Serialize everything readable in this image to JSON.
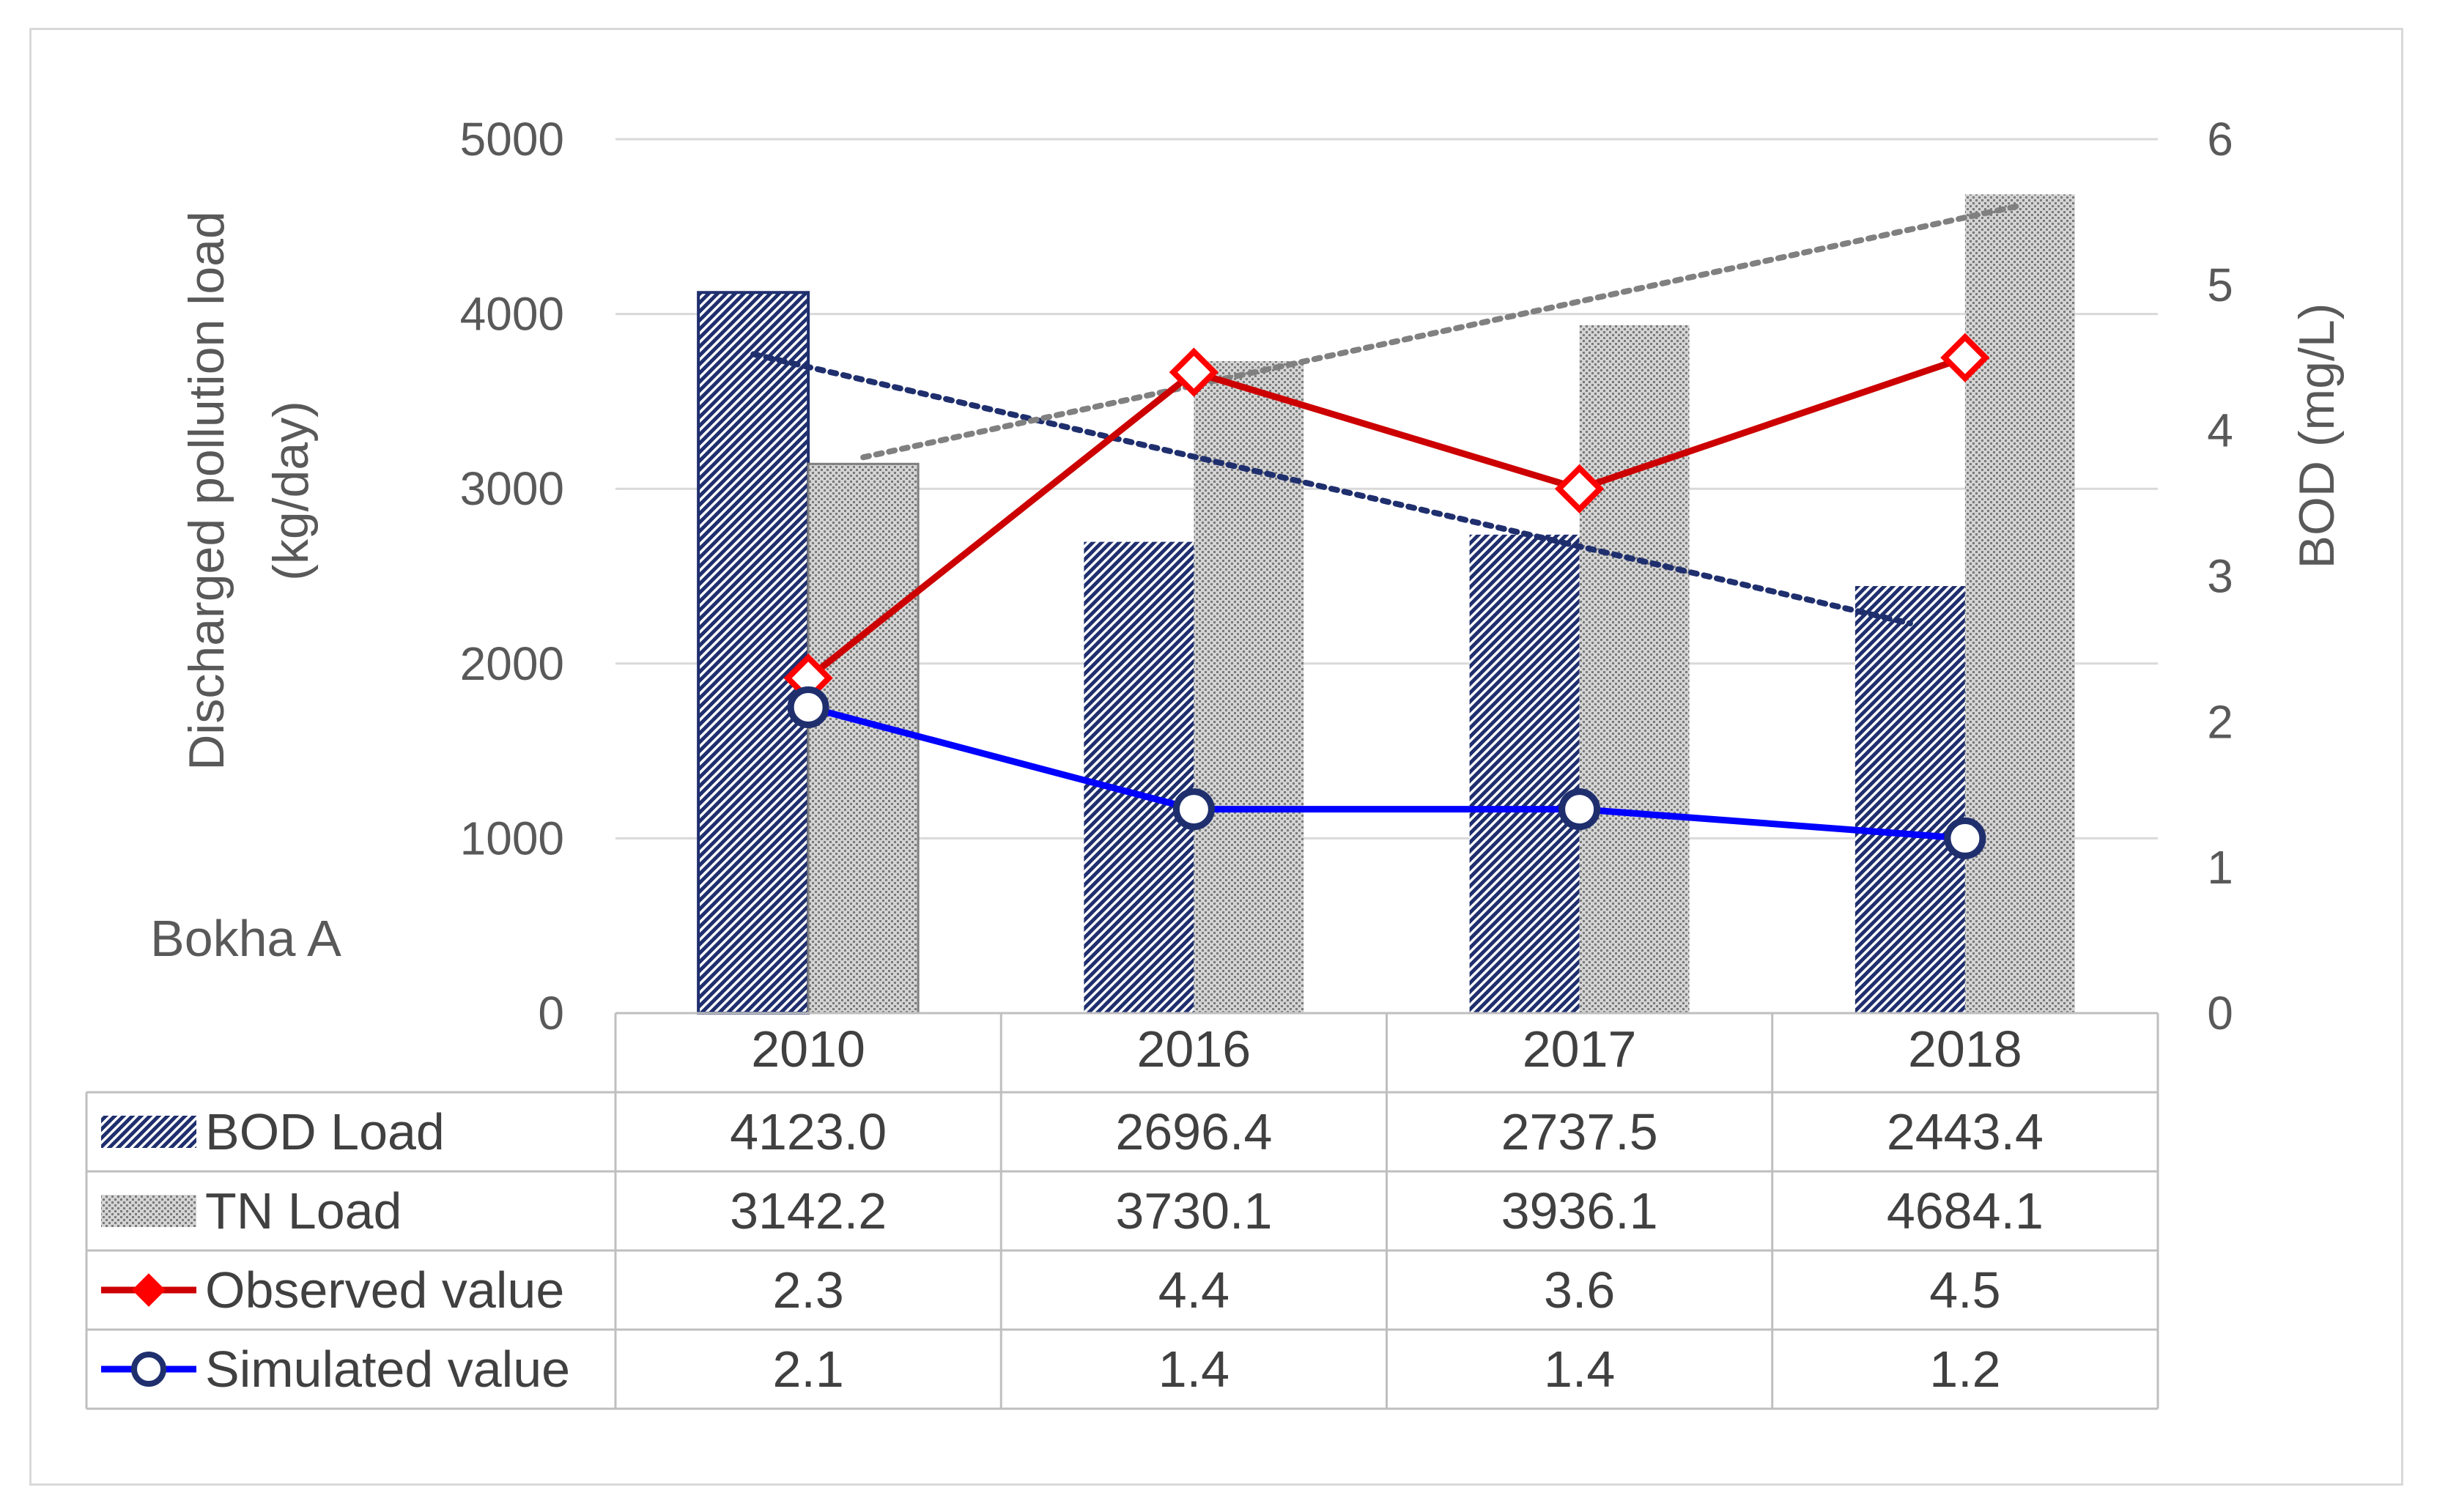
{
  "chart_data": {
    "type": "bar",
    "title": "",
    "station_label": "Bokha A",
    "categories": [
      "2010",
      "2016",
      "2017",
      "2018"
    ],
    "ylabel_left_line1": "Discharged pollution load",
    "ylabel_left_line2": "(kg/day)",
    "ylabel_right": "BOD (mg/L)",
    "ylim_left": [
      0,
      5000
    ],
    "ylim_right": [
      0,
      6
    ],
    "yticks_left": [
      "0",
      "1000",
      "2000",
      "3000",
      "4000",
      "5000"
    ],
    "yticks_right": [
      "0",
      "1",
      "2",
      "3",
      "4",
      "5",
      "6"
    ],
    "grid": true,
    "legend": "data-table",
    "series": [
      {
        "name": "BOD Load",
        "type": "bar",
        "axis": "left",
        "color": "#1f2f6e",
        "values": [
          4123.0,
          2696.4,
          2737.5,
          2443.4
        ],
        "labels": [
          "4123.0",
          "2696.4",
          "2737.5",
          "2443.4"
        ]
      },
      {
        "name": "TN Load",
        "type": "bar",
        "axis": "left",
        "color": "#bdbdbd",
        "values": [
          3142.2,
          3730.1,
          3936.1,
          4684.1
        ],
        "labels": [
          "3142.2",
          "3730.1",
          "3936.1",
          "4684.1"
        ]
      },
      {
        "name": "Observed value",
        "type": "line",
        "axis": "right",
        "color": "#cc0000",
        "values": [
          2.3,
          4.4,
          3.6,
          4.5
        ],
        "labels": [
          "2.3",
          "4.4",
          "3.6",
          "4.5"
        ]
      },
      {
        "name": "Simulated value",
        "type": "line",
        "axis": "right",
        "color": "#0000ff",
        "values": [
          2.1,
          1.4,
          1.4,
          1.2
        ],
        "labels": [
          "2.1",
          "1.4",
          "1.4",
          "1.2"
        ]
      }
    ],
    "trendlines": [
      {
        "name": "BOD Load trend",
        "series": "BOD Load",
        "color": "#1f2f6e",
        "from": 3770,
        "to": 2230
      },
      {
        "name": "TN Load trend",
        "series": "TN Load",
        "color": "#808080",
        "from": 3180,
        "to": 4620
      }
    ]
  }
}
